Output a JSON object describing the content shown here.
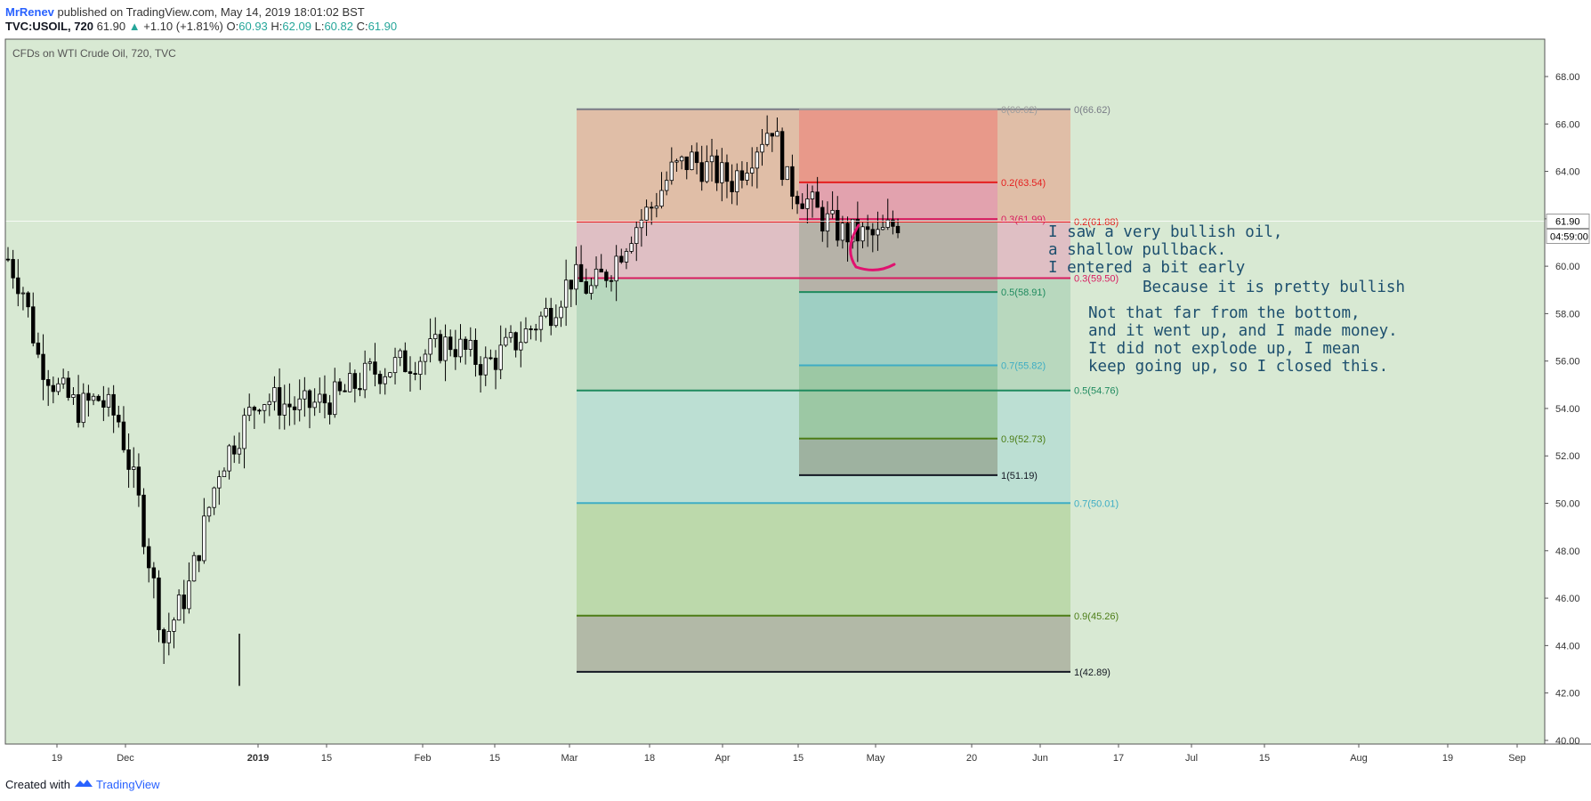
{
  "header": {
    "user": "MrRenev",
    "published": "published on TradingView.com, May 14, 2019 18:01:02 BST",
    "ticker": "TVC:USOIL, 720",
    "last": "61.90",
    "change": "+1.10 (+1.81%)",
    "o_label": "O:",
    "o": "60.93",
    "h_label": "H:",
    "h": "62.09",
    "l_label": "L:",
    "l": "60.82",
    "c_label": "C:",
    "c": "61.90"
  },
  "footer": {
    "created_with": "Created with",
    "brand": "TradingView"
  },
  "colors": {
    "background": "#d8e9d3",
    "candle": "#000000",
    "accent": "#2962ff",
    "annotation": "#1d4f6e"
  },
  "chart_data": {
    "type": "candlestick",
    "title": "CFDs on WTI Crude Oil, 720, TVC",
    "xlabel": "",
    "ylabel": "",
    "ylim": [
      40,
      69
    ],
    "y_ticks": [
      "68.00",
      "66.00",
      "64.00",
      "62.00",
      "60.00",
      "58.00",
      "56.00",
      "54.00",
      "52.00",
      "50.00",
      "48.00",
      "46.00",
      "44.00",
      "42.00",
      "40.00"
    ],
    "x_ticks": [
      "19",
      "Dec",
      "2019",
      "15",
      "Feb",
      "15",
      "Mar",
      "18",
      "Apr",
      "15",
      "May",
      "20",
      "Jun",
      "17",
      "Jul",
      "15",
      "Aug",
      "19",
      "Sep"
    ],
    "price_label": "61.90",
    "countdown": "04:59:00",
    "grid": false,
    "price_path": [
      [
        0,
        60.3
      ],
      [
        3,
        59.0
      ],
      [
        6,
        56.2
      ],
      [
        10,
        54.8
      ],
      [
        14,
        54.0
      ],
      [
        18,
        54.4
      ],
      [
        22,
        53.5
      ],
      [
        26,
        50.0
      ],
      [
        31,
        44.2
      ],
      [
        36,
        46.5
      ],
      [
        42,
        51.5
      ],
      [
        50,
        54.5
      ],
      [
        58,
        54.0
      ],
      [
        66,
        54.5
      ],
      [
        72,
        55.5
      ],
      [
        80,
        56.0
      ],
      [
        88,
        56.8
      ],
      [
        95,
        55.8
      ],
      [
        102,
        57.0
      ],
      [
        108,
        58.2
      ],
      [
        112,
        59.5
      ],
      [
        116,
        59.0
      ],
      [
        120,
        60.0
      ],
      [
        124,
        61.5
      ],
      [
        128,
        62.5
      ],
      [
        132,
        64.0
      ],
      [
        136,
        64.5
      ],
      [
        140,
        64.0
      ],
      [
        144,
        63.6
      ],
      [
        147,
        64.5
      ],
      [
        150,
        65.5
      ],
      [
        152,
        66.0
      ],
      [
        155,
        63.5
      ],
      [
        158,
        63.0
      ],
      [
        162,
        62.0
      ],
      [
        166,
        61.4
      ],
      [
        170,
        61.3
      ],
      [
        173,
        61.2
      ],
      [
        177,
        61.9
      ]
    ],
    "fib_retracements": [
      {
        "name": "large",
        "levels": [
          {
            "ratio": "0",
            "value": 66.62,
            "label": "0(66.62)",
            "color": "#787b86"
          },
          {
            "ratio": "0.2",
            "value": 61.88,
            "label": "0.2(61.88)",
            "color": "#e51f1f"
          },
          {
            "ratio": "0.3",
            "value": 59.5,
            "label": "0.3(59.50)",
            "color": "#d81b60"
          },
          {
            "ratio": "0.5",
            "value": 54.76,
            "label": "0.5(54.76)",
            "color": "#1e8a5e"
          },
          {
            "ratio": "0.7",
            "value": 50.01,
            "label": "0.7(50.01)",
            "color": "#3eadc4"
          },
          {
            "ratio": "0.9",
            "value": 45.26,
            "label": "0.9(45.26)",
            "color": "#4c7d16"
          },
          {
            "ratio": "1",
            "value": 42.89,
            "label": "1(42.89)",
            "color": "#131722"
          }
        ],
        "fills": [
          "#e0bea7",
          "#dfbfc4",
          "#b8d8be",
          "#bcdfd3",
          "#bcd9ab",
          "#b2b9a7"
        ]
      },
      {
        "name": "small",
        "levels": [
          {
            "ratio": "0",
            "value": 66.62,
            "label": "0(66.62)",
            "color": "#9e9e9e"
          },
          {
            "ratio": "0.2",
            "value": 63.54,
            "label": "0.2(63.54)",
            "color": "#e51f1f"
          },
          {
            "ratio": "0.3",
            "value": 61.99,
            "label": "0.3(61.99)",
            "color": "#d81b60"
          },
          {
            "ratio": "0.5",
            "value": 58.91,
            "label": "0.5(58.91)",
            "color": "#1e8a5e"
          },
          {
            "ratio": "0.7",
            "value": 55.82,
            "label": "0.7(55.82)",
            "color": "#3eadc4"
          },
          {
            "ratio": "0.9",
            "value": 52.73,
            "label": "0.9(52.73)",
            "color": "#4c7d16"
          },
          {
            "ratio": "1",
            "value": 51.19,
            "label": "1(51.19)",
            "color": "#131722"
          }
        ],
        "fills": [
          "#e8998a",
          "#e2a2ae",
          "#b6b2a8",
          "#9ecfc3",
          "#9cc8a4",
          "#9eb2a0"
        ]
      }
    ],
    "annotations": [
      "I saw a very bullish oil,",
      "a shallow pullback.",
      "I entered a bit early",
      "Because it is pretty bullish",
      "Not that far from the bottom,",
      "and it went up, and I made money.",
      "It did not explode up, I mean",
      "keep going up, so I closed this."
    ]
  }
}
